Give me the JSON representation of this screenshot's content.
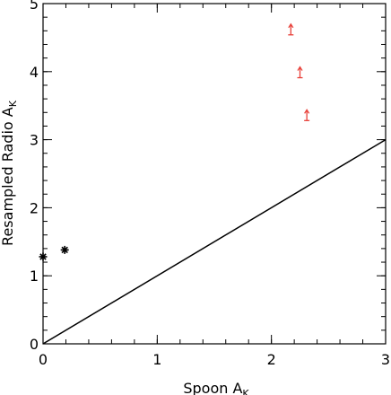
{
  "chart_data": {
    "type": "scatter",
    "title": "",
    "xlabel": {
      "main": "Spoon A",
      "sub": "K"
    },
    "ylabel": {
      "main": "Resampled Radio A",
      "sub": "K"
    },
    "xlim": [
      0,
      3
    ],
    "ylim": [
      0,
      5
    ],
    "xticks": [
      0,
      1,
      2,
      3
    ],
    "yticks": [
      0,
      1,
      2,
      3,
      4,
      5
    ],
    "grid": false,
    "reference_line": {
      "name": "y = x",
      "from": [
        0,
        0
      ],
      "to": [
        3,
        3
      ],
      "color": "#000000"
    },
    "series": [
      {
        "marker": "asterisk",
        "color": "#000000",
        "points": [
          {
            "x": 0.0,
            "y": 1.28
          },
          {
            "x": 0.19,
            "y": 1.38
          }
        ]
      },
      {
        "marker": "lower-limit-arrow",
        "color": "#e8413a",
        "points": [
          {
            "x": 2.17,
            "y": 4.62
          },
          {
            "x": 2.25,
            "y": 3.99
          },
          {
            "x": 2.31,
            "y": 3.36
          }
        ]
      }
    ]
  }
}
